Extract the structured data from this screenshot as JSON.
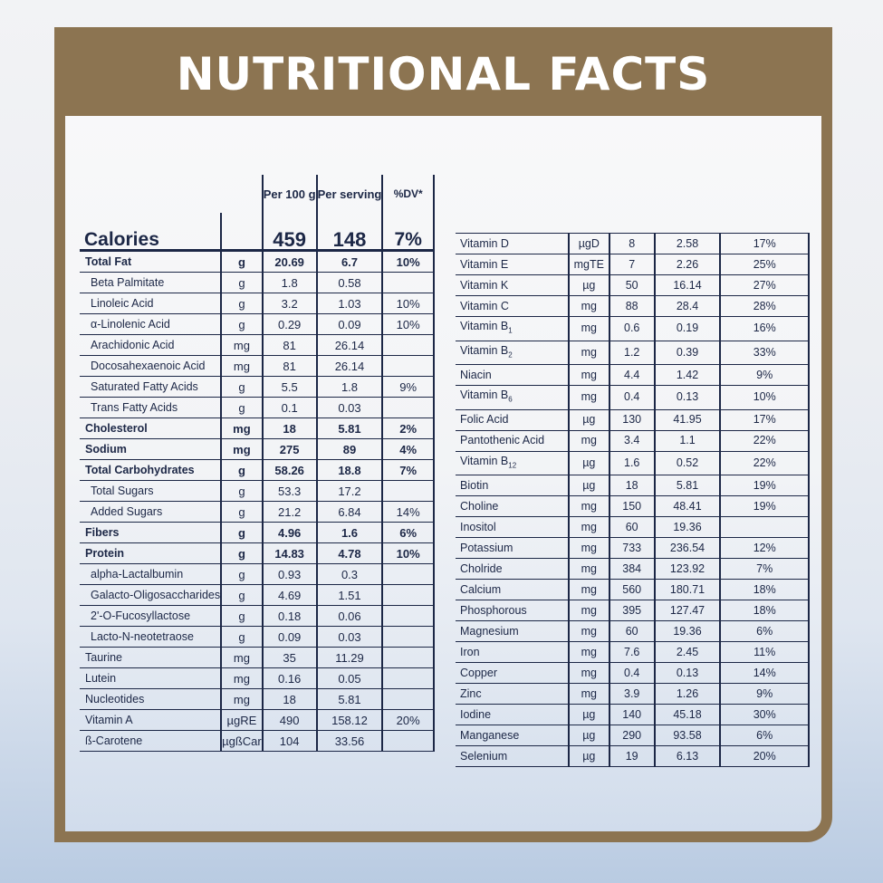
{
  "title": "NUTRITIONAL FACTS",
  "left_table": {
    "headers": {
      "per100": "Per 100 g",
      "serving": "Per serving",
      "dv": "%DV*"
    },
    "calories": {
      "label": "Calories",
      "per100": "459",
      "serving": "148",
      "dv": "7%"
    },
    "rows": [
      {
        "name": "Total Fat",
        "unit": "g",
        "per100": "20.69",
        "serving": "6.7",
        "dv": "10%",
        "bold": true
      },
      {
        "name": "Beta Palmitate",
        "unit": "g",
        "per100": "1.8",
        "serving": "0.58",
        "dv": ""
      },
      {
        "name": "Linoleic Acid",
        "unit": "g",
        "per100": "3.2",
        "serving": "1.03",
        "dv": "10%"
      },
      {
        "name": "α-Linolenic Acid",
        "unit": "g",
        "per100": "0.29",
        "serving": "0.09",
        "dv": "10%"
      },
      {
        "name": "Arachidonic Acid",
        "unit": "mg",
        "per100": "81",
        "serving": "26.14",
        "dv": ""
      },
      {
        "name": "Docosahexaenoic Acid",
        "unit": "mg",
        "per100": "81",
        "serving": "26.14",
        "dv": ""
      },
      {
        "name": "Saturated Fatty Acids",
        "unit": "g",
        "per100": "5.5",
        "serving": "1.8",
        "dv": "9%"
      },
      {
        "name": "Trans Fatty Acids",
        "unit": "g",
        "per100": "0.1",
        "serving": "0.03",
        "dv": ""
      },
      {
        "name": "Cholesterol",
        "unit": "mg",
        "per100": "18",
        "serving": "5.81",
        "dv": "2%",
        "bold": true
      },
      {
        "name": "Sodium",
        "unit": "mg",
        "per100": "275",
        "serving": "89",
        "dv": "4%",
        "bold": true
      },
      {
        "name": "Total Carbohydrates",
        "unit": "g",
        "per100": "58.26",
        "serving": "18.8",
        "dv": "7%",
        "bold": true
      },
      {
        "name": "Total Sugars",
        "unit": "g",
        "per100": "53.3",
        "serving": "17.2",
        "dv": ""
      },
      {
        "name": "Added Sugars",
        "unit": "g",
        "per100": "21.2",
        "serving": "6.84",
        "dv": "14%"
      },
      {
        "name": "Fibers",
        "unit": "g",
        "per100": "4.96",
        "serving": "1.6",
        "dv": "6%",
        "bold": true
      },
      {
        "name": "Protein",
        "unit": "g",
        "per100": "14.83",
        "serving": "4.78",
        "dv": "10%",
        "bold": true
      },
      {
        "name": "alpha-Lactalbumin",
        "unit": "g",
        "per100": "0.93",
        "serving": "0.3",
        "dv": ""
      },
      {
        "name": "Galacto-Oligosaccharides",
        "unit": "g",
        "per100": "4.69",
        "serving": "1.51",
        "dv": ""
      },
      {
        "name": "2'-O-Fucosyllactose",
        "unit": "g",
        "per100": "0.18",
        "serving": "0.06",
        "dv": ""
      },
      {
        "name": "Lacto-N-neotetraose",
        "unit": "g",
        "per100": "0.09",
        "serving": "0.03",
        "dv": ""
      },
      {
        "name": "Taurine",
        "unit": "mg",
        "per100": "35",
        "serving": "11.29",
        "dv": "",
        "flush": true
      },
      {
        "name": "Lutein",
        "unit": "mg",
        "per100": "0.16",
        "serving": "0.05",
        "dv": "",
        "flush": true
      },
      {
        "name": "Nucleotides",
        "unit": "mg",
        "per100": "18",
        "serving": "5.81",
        "dv": "",
        "flush": true
      },
      {
        "name": "Vitamin A",
        "unit": "µgRE",
        "per100": "490",
        "serving": "158.12",
        "dv": "20%",
        "flush": true
      },
      {
        "name": "ß-Carotene",
        "unit": "µgßCar",
        "per100": "104",
        "serving": "33.56",
        "dv": "",
        "flush": true
      }
    ]
  },
  "right_table": {
    "rows": [
      {
        "name": "Vitamin D",
        "unit": "µgD",
        "per100": "8",
        "serving": "2.58",
        "dv": "17%"
      },
      {
        "name": "Vitamin E",
        "unit": "mgTE",
        "per100": "7",
        "serving": "2.26",
        "dv": "25%"
      },
      {
        "name": "Vitamin K",
        "unit": "µg",
        "per100": "50",
        "serving": "16.14",
        "dv": "27%"
      },
      {
        "name": "Vitamin C",
        "unit": "mg",
        "per100": "88",
        "serving": "28.4",
        "dv": "28%"
      },
      {
        "name": "Vitamin B",
        "sub": "1",
        "unit": "mg",
        "per100": "0.6",
        "serving": "0.19",
        "dv": "16%"
      },
      {
        "name": "Vitamin B",
        "sub": "2",
        "unit": "mg",
        "per100": "1.2",
        "serving": "0.39",
        "dv": "33%"
      },
      {
        "name": "Niacin",
        "unit": "mg",
        "per100": "4.4",
        "serving": "1.42",
        "dv": "9%"
      },
      {
        "name": "Vitamin B",
        "sub": "6",
        "unit": "mg",
        "per100": "0.4",
        "serving": "0.13",
        "dv": "10%"
      },
      {
        "name": "Folic Acid",
        "unit": "µg",
        "per100": "130",
        "serving": "41.95",
        "dv": "17%"
      },
      {
        "name": "Pantothenic Acid",
        "unit": "mg",
        "per100": "3.4",
        "serving": "1.1",
        "dv": "22%"
      },
      {
        "name": "Vitamin B",
        "sub": "12",
        "unit": "µg",
        "per100": "1.6",
        "serving": "0.52",
        "dv": "22%"
      },
      {
        "name": "Biotin",
        "unit": "µg",
        "per100": "18",
        "serving": "5.81",
        "dv": "19%"
      },
      {
        "name": "Choline",
        "unit": "mg",
        "per100": "150",
        "serving": "48.41",
        "dv": "19%"
      },
      {
        "name": "Inositol",
        "unit": "mg",
        "per100": "60",
        "serving": "19.36",
        "dv": ""
      },
      {
        "name": "Potassium",
        "unit": "mg",
        "per100": "733",
        "serving": "236.54",
        "dv": "12%"
      },
      {
        "name": "Cholride",
        "unit": "mg",
        "per100": "384",
        "serving": "123.92",
        "dv": "7%"
      },
      {
        "name": "Calcium",
        "unit": "mg",
        "per100": "560",
        "serving": "180.71",
        "dv": "18%"
      },
      {
        "name": "Phosphorous",
        "unit": "mg",
        "per100": "395",
        "serving": "127.47",
        "dv": "18%"
      },
      {
        "name": "Magnesium",
        "unit": "mg",
        "per100": "60",
        "serving": "19.36",
        "dv": "6%"
      },
      {
        "name": "Iron",
        "unit": "mg",
        "per100": "7.6",
        "serving": "2.45",
        "dv": "11%"
      },
      {
        "name": "Copper",
        "unit": "mg",
        "per100": "0.4",
        "serving": "0.13",
        "dv": "14%"
      },
      {
        "name": "Zinc",
        "unit": "mg",
        "per100": "3.9",
        "serving": "1.26",
        "dv": "9%"
      },
      {
        "name": "Iodine",
        "unit": "µg",
        "per100": "140",
        "serving": "45.18",
        "dv": "30%"
      },
      {
        "name": "Manganese",
        "unit": "µg",
        "per100": "290",
        "serving": "93.58",
        "dv": "6%"
      },
      {
        "name": "Selenium",
        "unit": "µg",
        "per100": "19",
        "serving": "6.13",
        "dv": "20%"
      }
    ]
  },
  "colors": {
    "brand_brown": "#8c7451",
    "text_navy": "#1c2746"
  }
}
